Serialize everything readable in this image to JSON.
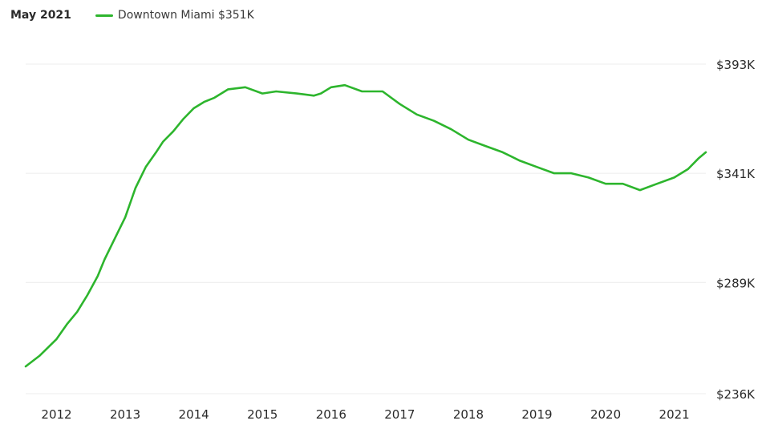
{
  "legend": {
    "date": "May 2021",
    "series_label": "Downtown Miami $351K"
  },
  "colors": {
    "series": "#2db52d",
    "grid": "#ececec",
    "text": "#2a2a2a"
  },
  "chart_data": {
    "type": "line",
    "title": "",
    "xlabel": "",
    "ylabel": "",
    "x_ticks": [
      "2012",
      "2013",
      "2014",
      "2015",
      "2016",
      "2017",
      "2018",
      "2019",
      "2020",
      "2021"
    ],
    "y_ticks": [
      "$236K",
      "$289K",
      "$341K",
      "$393K"
    ],
    "ylim": [
      236,
      393
    ],
    "xlim": [
      2011.55,
      2021.46
    ],
    "grid": true,
    "legend_position": "top-left",
    "series": [
      {
        "name": "Downtown Miami $351K",
        "x": [
          2011.55,
          2011.75,
          2012.0,
          2012.15,
          2012.3,
          2012.45,
          2012.6,
          2012.7,
          2012.85,
          2013.0,
          2013.15,
          2013.3,
          2013.45,
          2013.55,
          2013.7,
          2013.85,
          2014.0,
          2014.15,
          2014.3,
          2014.5,
          2014.75,
          2015.0,
          2015.2,
          2015.5,
          2015.75,
          2015.85,
          2016.0,
          2016.2,
          2016.45,
          2016.75,
          2017.0,
          2017.25,
          2017.5,
          2017.75,
          2018.0,
          2018.25,
          2018.5,
          2018.75,
          2019.0,
          2019.25,
          2019.5,
          2019.75,
          2020.0,
          2020.25,
          2020.5,
          2020.75,
          2021.0,
          2021.2,
          2021.35,
          2021.46
        ],
        "values": [
          249,
          254,
          262,
          269,
          275,
          283,
          292,
          300,
          310,
          320,
          334,
          344,
          351,
          356,
          361,
          367,
          372,
          375,
          377,
          381,
          382,
          379,
          380,
          379,
          378,
          379,
          382,
          383,
          380,
          380,
          374,
          369,
          366,
          362,
          357,
          354,
          351,
          347,
          344,
          341,
          341,
          339,
          336,
          336,
          333,
          336,
          339,
          343,
          348,
          351
        ]
      }
    ]
  }
}
